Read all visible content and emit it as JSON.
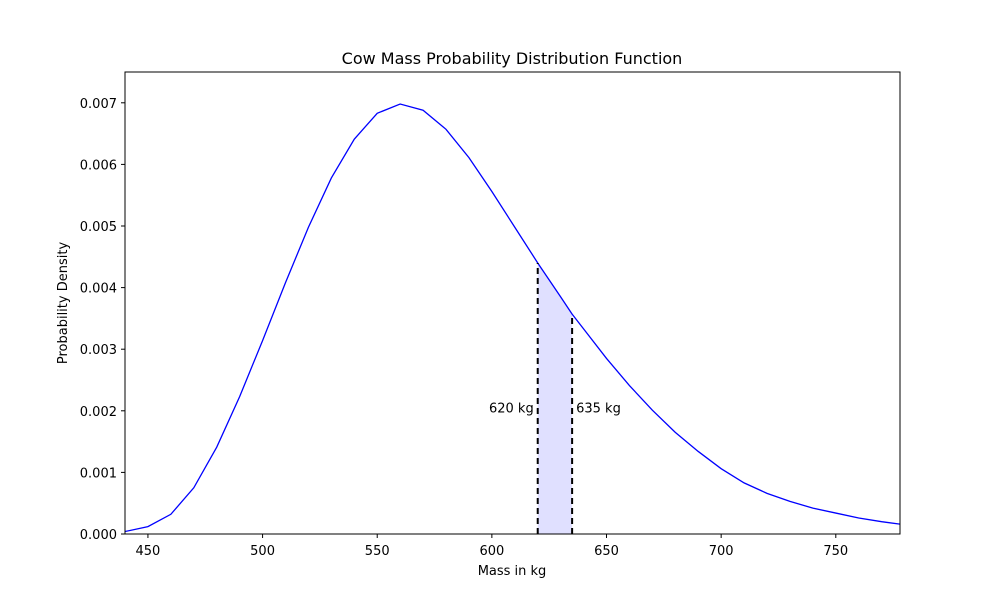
{
  "chart_data": {
    "type": "line",
    "title": "Cow Mass Probability Distribution Function",
    "xlabel": "Mass in kg",
    "ylabel": "Probability Density",
    "xlim": [
      440,
      778
    ],
    "ylim": [
      0,
      0.0075
    ],
    "x_ticks": [
      450,
      500,
      550,
      600,
      650,
      700,
      750
    ],
    "y_ticks": [
      0.0,
      0.001,
      0.002,
      0.003,
      0.004,
      0.005,
      0.006,
      0.007
    ],
    "x_tick_labels": [
      "450",
      "500",
      "550",
      "600",
      "650",
      "700",
      "750"
    ],
    "y_tick_labels": [
      "0.000",
      "0.001",
      "0.002",
      "0.003",
      "0.004",
      "0.005",
      "0.006",
      "0.007"
    ],
    "grid": false,
    "series": [
      {
        "color": "#0000ff",
        "x": [
          440,
          450,
          460,
          470,
          480,
          490,
          500,
          510,
          520,
          530,
          540,
          550,
          560,
          570,
          580,
          590,
          600,
          610,
          620,
          630,
          635,
          640,
          650,
          660,
          670,
          680,
          690,
          700,
          710,
          720,
          730,
          740,
          750,
          760,
          770,
          778
        ],
        "y": [
          4e-05,
          0.00012,
          0.00032,
          0.00075,
          0.00141,
          0.00223,
          0.00314,
          0.00408,
          0.00498,
          0.00578,
          0.00641,
          0.00683,
          0.00698,
          0.00688,
          0.00657,
          0.00611,
          0.00556,
          0.00498,
          0.0044,
          0.00385,
          0.00357,
          0.00333,
          0.00285,
          0.00241,
          0.00201,
          0.00165,
          0.00134,
          0.00106,
          0.00083,
          0.00066,
          0.00053,
          0.00042,
          0.00034,
          0.00026,
          0.0002,
          0.00016
        ]
      }
    ],
    "shaded_region": {
      "x_start": 620,
      "x_end": 635,
      "fill": "#e0e0ff"
    },
    "markers": [
      {
        "x": 620,
        "label": "620 kg",
        "label_y": 0.00205,
        "label_side": "left"
      },
      {
        "x": 635,
        "label": "635 kg",
        "label_y": 0.00205,
        "label_side": "right"
      }
    ]
  }
}
